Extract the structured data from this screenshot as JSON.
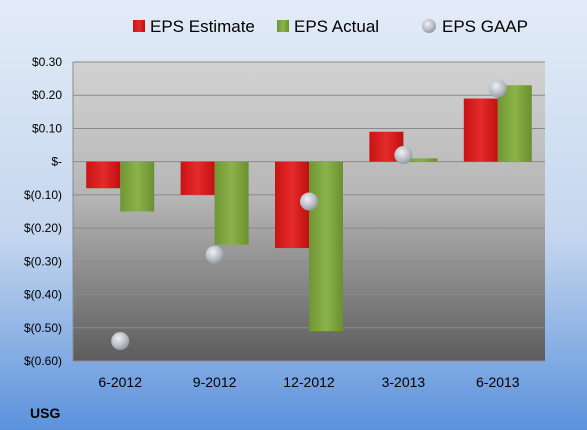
{
  "ticker": "USG",
  "colors": {
    "estimate": "#d81e1e",
    "actual": "#7fa53c",
    "gaap": "#b8bcc4",
    "bg_top": "#dfe9f5",
    "bg_bottom": "#5e93d8"
  },
  "chart_data": {
    "type": "bar",
    "categories": [
      "6-2012",
      "9-2012",
      "12-2012",
      "3-2013",
      "6-2013"
    ],
    "series": [
      {
        "name": "EPS Estimate",
        "kind": "bar",
        "color": "#d81e1e",
        "values": [
          -0.08,
          -0.1,
          -0.26,
          0.09,
          0.19
        ]
      },
      {
        "name": "EPS Actual",
        "kind": "bar",
        "color": "#7fa53c",
        "values": [
          -0.15,
          -0.25,
          -0.51,
          0.01,
          0.23
        ]
      },
      {
        "name": "EPS GAAP",
        "kind": "scatter",
        "color": "#b8bcc4",
        "values": [
          -0.54,
          -0.28,
          -0.12,
          0.02,
          0.22
        ]
      }
    ],
    "ylim": [
      -0.6,
      0.3
    ],
    "yticks": [
      0.3,
      0.2,
      0.1,
      0.0,
      -0.1,
      -0.2,
      -0.3,
      -0.4,
      -0.5,
      -0.6
    ],
    "ytick_labels": [
      "$0.30",
      "$0.20",
      "$0.10",
      "$-",
      "$(0.10)",
      "$(0.20)",
      "$(0.30)",
      "$(0.40)",
      "$(0.50)",
      "$(0.60)"
    ],
    "legend_position": "top",
    "grid": true
  }
}
